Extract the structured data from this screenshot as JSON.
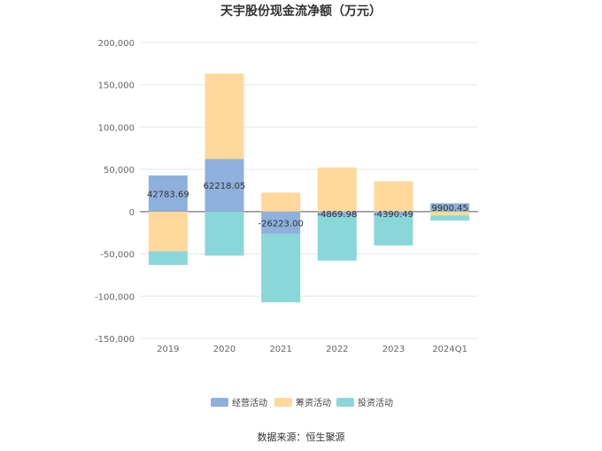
{
  "chart_data": {
    "type": "bar",
    "stacked": true,
    "title": "天宇股份现金流净额（万元）",
    "categories": [
      "2019",
      "2020",
      "2021",
      "2022",
      "2023",
      "2024Q1"
    ],
    "series": [
      {
        "name": "经营活动",
        "color": "#8eb0dc",
        "values": [
          42783.69,
          62218.05,
          -26223.0,
          -4869.98,
          -4390.49,
          9900.45
        ]
      },
      {
        "name": "筹资活动",
        "color": "#fed99b",
        "values": [
          -47000,
          101000,
          22500,
          52000,
          36000,
          -4500
        ]
      },
      {
        "name": "投资活动",
        "color": "#8ad7d9",
        "values": [
          -16000,
          -52000,
          -81000,
          -53000,
          -35500,
          -6000
        ]
      }
    ],
    "data_labels": [
      "42783.69",
      "62218.05",
      "-26223.00",
      "-4869.98",
      "-4390.49",
      "9900.45"
    ],
    "ylim": [
      -150000,
      200000
    ],
    "yticks": [
      200000,
      150000,
      100000,
      50000,
      0,
      -50000,
      -100000,
      -150000
    ],
    "ytick_labels": [
      "200,000",
      "150,000",
      "100,000",
      "50,000",
      "0",
      "-50,000",
      "-100,000",
      "-150,000"
    ],
    "grid": true,
    "legend_position": "bottom"
  },
  "source_note": "数据来源：恒生聚源"
}
